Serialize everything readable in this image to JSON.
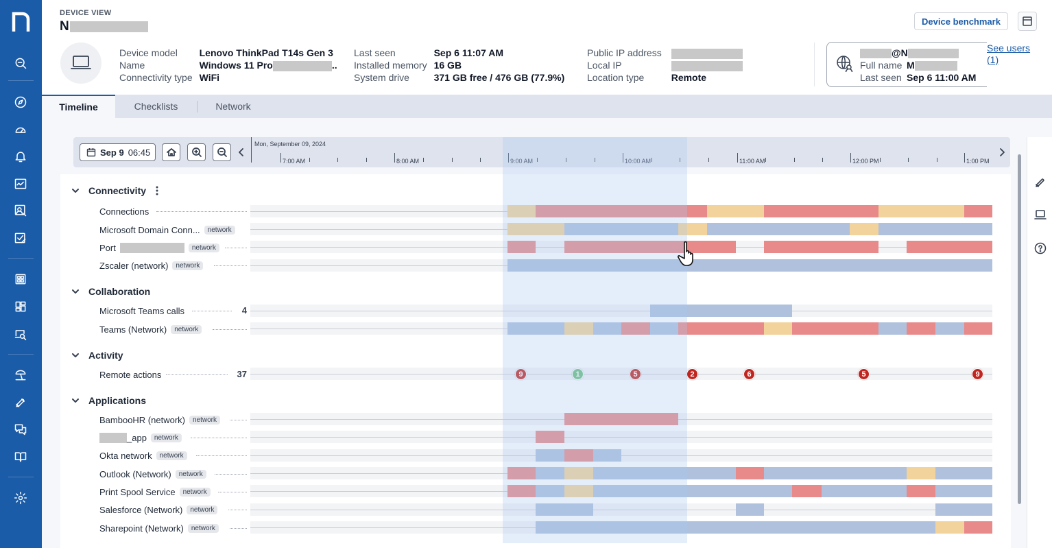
{
  "nav": {
    "items": [
      "search-icon",
      "compass-icon",
      "gauge-icon",
      "bell-icon",
      "activity-icon",
      "users-search-icon",
      "checklist-icon",
      "grid-icon",
      "dashboard-icon",
      "device-search-icon",
      "beach-icon",
      "rocket-icon",
      "chat-icon",
      "book-icon",
      "gear-icon"
    ]
  },
  "header": {
    "section_label": "DEVICE VIEW",
    "device_name_prefix": "N",
    "benchmark_button": "Device benchmark",
    "info_col1": [
      {
        "k": "Device model",
        "v": "Lenovo ThinkPad T14s Gen 3"
      },
      {
        "k": "Name",
        "v": "Windows 11 Pro"
      },
      {
        "k": "Connectivity type",
        "v": "WiFi"
      }
    ],
    "name_suffix": "..",
    "info_col2": [
      {
        "k": "Last seen",
        "v": "Sep 6 11:07 AM"
      },
      {
        "k": "Installed memory",
        "v": "16 GB"
      },
      {
        "k": "System drive",
        "v": "371 GB free / 476 GB (77.9%)"
      }
    ],
    "info_col3": [
      {
        "k": "Public IP address",
        "v": ""
      },
      {
        "k": "Local IP",
        "v": ""
      },
      {
        "k": "Location type",
        "v": "Remote"
      }
    ],
    "user": {
      "email_mid": "@N",
      "full_name_k": "Full name",
      "full_name_v": "M",
      "last_seen_k": "Last seen",
      "last_seen_v": "Sep 6 11:00 AM"
    },
    "see_users": "See users (1)"
  },
  "tabs": [
    {
      "label": "Timeline",
      "active": true
    },
    {
      "label": "Checklists",
      "active": false
    },
    {
      "label": "Network",
      "active": false
    }
  ],
  "toolbar": {
    "date_bold": "Sep 9",
    "date_time": "06:45",
    "axis_date": "Mon, September 09, 2024",
    "ticks": [
      "7:00 AM",
      "8:00 AM",
      "9:00 AM",
      "10:00 AM",
      "11:00 AM",
      "12:00 PM",
      "1:00 PM"
    ]
  },
  "sections": {
    "connectivity": "Connectivity",
    "collaboration": "Collaboration",
    "activity": "Activity",
    "applications": "Applications"
  },
  "badge_network": "network",
  "rows": {
    "connections": "Connections",
    "ms_domain": "Microsoft Domain Conn...",
    "port": "Port",
    "zscaler": "Zscaler (network)",
    "teams_calls": "Microsoft Teams calls",
    "teams_calls_count": "4",
    "teams_network": "Teams (Network)",
    "remote_actions": "Remote actions",
    "remote_actions_count": "37",
    "bamboo": "BambooHR (network)",
    "app_suffix": "_app",
    "okta": "Okta network",
    "outlook": "Outlook (Network)",
    "print_spool": "Print Spool Service",
    "salesforce": "Salesforce (Network)",
    "sharepoint": "Sharepoint (Network)"
  },
  "remote_action_markers": [
    "9",
    "1",
    "5",
    "2",
    "6",
    "5",
    "9"
  ],
  "colors": {
    "brand": "#1b5ca8",
    "bad": "#e88a8a",
    "warning": "#f2d39b",
    "good": "#afc1dd"
  }
}
